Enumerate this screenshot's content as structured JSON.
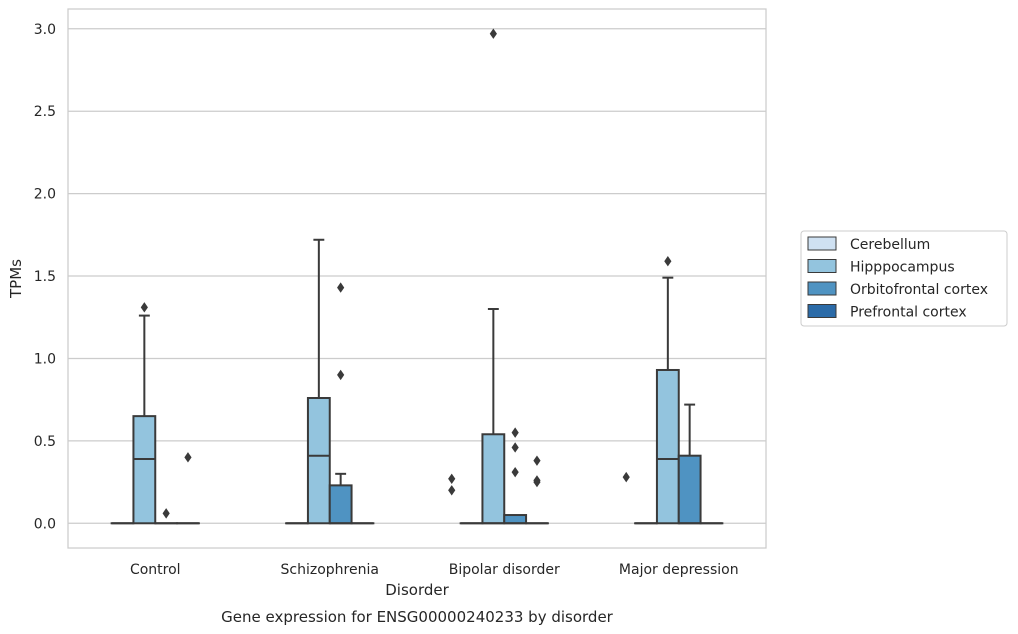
{
  "chart_data": {
    "type": "box",
    "title": "",
    "caption": "Gene expression for ENSG00000240233 by disorder",
    "xlabel": "Disorder",
    "ylabel": "TPMs",
    "ylim": [
      -0.15,
      3.12
    ],
    "yticks": [
      "0.0",
      "0.5",
      "1.0",
      "1.5",
      "2.0",
      "2.5",
      "3.0"
    ],
    "grid": "horizontal",
    "legend_position": "right",
    "categories": [
      "Control",
      "Schizophrenia",
      "Bipolar disorder",
      "Major depression"
    ],
    "series": [
      {
        "name": "Cerebellum",
        "color": "#cfe1f2",
        "boxes": [
          {
            "q1": 0,
            "median": 0,
            "q3": 0,
            "whisker_low": 0,
            "whisker_high": 0,
            "outliers": []
          },
          {
            "q1": 0,
            "median": 0,
            "q3": 0,
            "whisker_low": 0,
            "whisker_high": 0,
            "outliers": []
          },
          {
            "q1": 0,
            "median": 0,
            "q3": 0,
            "whisker_low": 0,
            "whisker_high": 0,
            "outliers": []
          },
          {
            "q1": 0,
            "median": 0,
            "q3": 0,
            "whisker_low": 0,
            "whisker_high": 0,
            "outliers": []
          }
        ]
      },
      {
        "name": "Hipppocampus",
        "color": "#93c4de",
        "boxes": [
          {
            "q1": 0,
            "median": 0.39,
            "q3": 0.65,
            "whisker_low": 0,
            "whisker_high": 1.26,
            "outliers": [
              1.31
            ]
          },
          {
            "q1": 0,
            "median": 0.41,
            "q3": 0.76,
            "whisker_low": 0,
            "whisker_high": 1.72,
            "outliers": []
          },
          {
            "q1": 0,
            "median": 0,
            "q3": 0.54,
            "whisker_low": 0,
            "whisker_high": 1.3,
            "outliers": [
              2.97
            ]
          },
          {
            "q1": 0,
            "median": 0.39,
            "q3": 0.93,
            "whisker_low": 0,
            "whisker_high": 1.49,
            "outliers": [
              1.59
            ]
          }
        ]
      },
      {
        "name": "Orbitofrontal cortex",
        "color": "#4f93c2",
        "boxes": [
          {
            "q1": 0,
            "median": 0,
            "q3": 0,
            "whisker_low": 0,
            "whisker_high": 0,
            "outliers": [
              0.06
            ]
          },
          {
            "q1": 0,
            "median": 0,
            "q3": 0.23,
            "whisker_low": 0,
            "whisker_high": 0.3,
            "outliers": [
              1.43,
              0.9
            ]
          },
          {
            "q1": 0,
            "median": 0,
            "q3": 0.05,
            "whisker_low": 0,
            "whisker_high": 0.05,
            "outliers": [
              0.55,
              0.46,
              0.31
            ]
          },
          {
            "q1": 0,
            "median": 0,
            "q3": 0.41,
            "whisker_low": 0,
            "whisker_high": 0.72,
            "outliers": []
          }
        ]
      },
      {
        "name": "Prefrontal cortex",
        "color": "#2b6ba8",
        "boxes": [
          {
            "q1": 0,
            "median": 0,
            "q3": 0,
            "whisker_low": 0,
            "whisker_high": 0,
            "outliers": [
              0.4
            ]
          },
          {
            "q1": 0,
            "median": 0,
            "q3": 0,
            "whisker_low": 0,
            "whisker_high": 0,
            "outliers": []
          },
          {
            "q1": 0,
            "median": 0,
            "q3": 0,
            "whisker_low": 0,
            "whisker_high": 0,
            "outliers": [
              0.38,
              0.26,
              0.25
            ]
          },
          {
            "q1": 0,
            "median": 0,
            "q3": 0,
            "whisker_low": 0,
            "whisker_high": 0,
            "outliers": []
          }
        ]
      }
    ],
    "extra_outliers": [
      {
        "category": "Bipolar disorder",
        "side": "left",
        "values": [
          0.27,
          0.2
        ]
      },
      {
        "category": "Major depression",
        "side": "left",
        "values": [
          0.28
        ]
      }
    ]
  }
}
